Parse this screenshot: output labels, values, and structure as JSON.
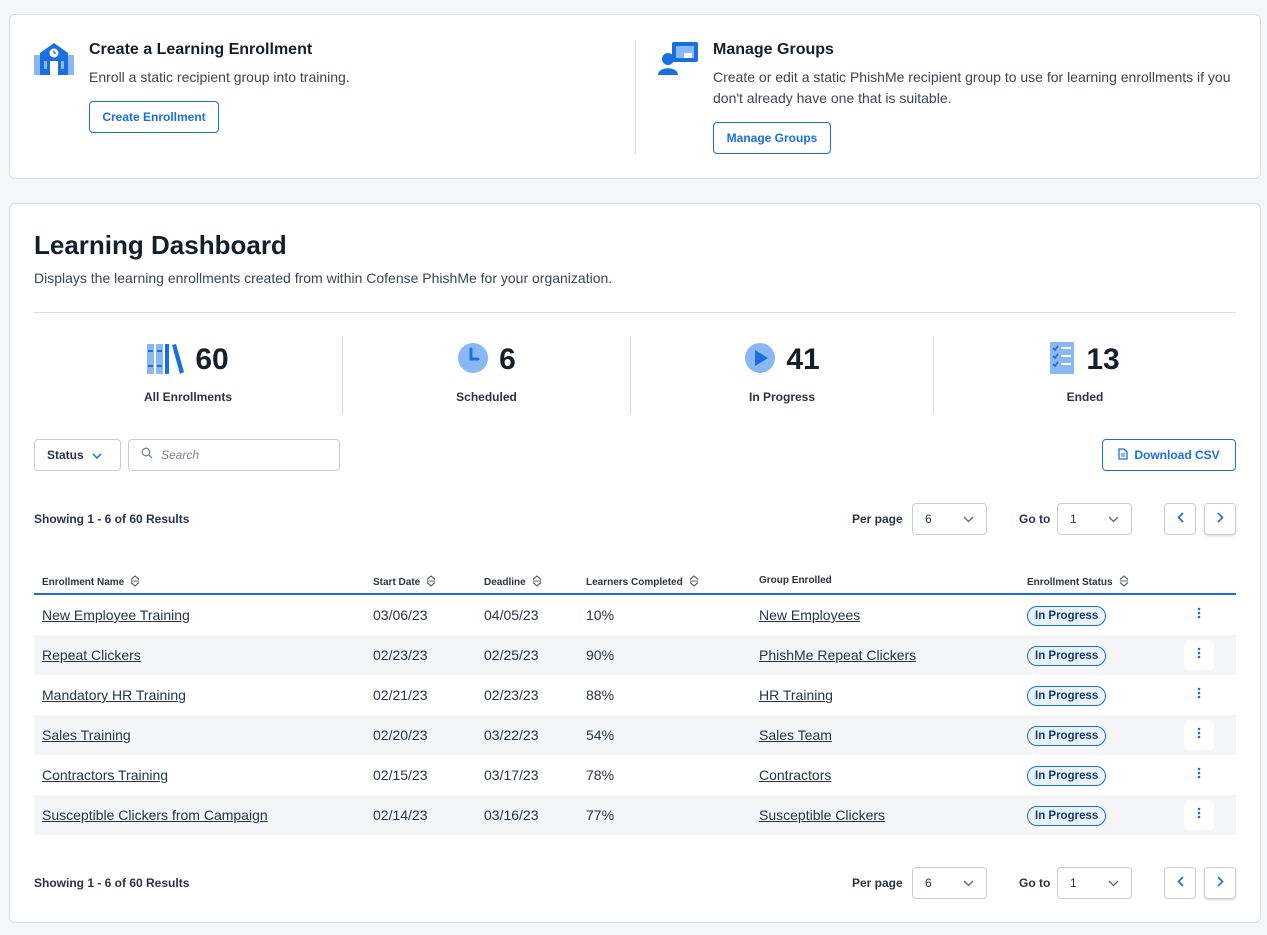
{
  "create": {
    "title": "Create a Learning Enrollment",
    "description": "Enroll a static recipient group into training.",
    "button": "Create Enrollment"
  },
  "groups": {
    "title": "Manage Groups",
    "description": "Create or edit a static PhishMe recipient group to use for learning enrollments if you don't already have one that is suitable.",
    "button": "Manage Groups"
  },
  "dashboard": {
    "title": "Learning Dashboard",
    "subtitle": "Displays the learning enrollments created from within Cofense PhishMe for your organization."
  },
  "stats": [
    {
      "value": "60",
      "label": "All Enrollments",
      "icon": "books-icon"
    },
    {
      "value": "6",
      "label": "Scheduled",
      "icon": "clock-icon"
    },
    {
      "value": "41",
      "label": "In Progress",
      "icon": "play-icon"
    },
    {
      "value": "13",
      "label": "Ended",
      "icon": "checklist-icon"
    }
  ],
  "filters": {
    "status_label": "Status",
    "search_placeholder": "Search",
    "download_label": "Download CSV"
  },
  "pager": {
    "results_text": "Showing 1 - 6 of 60 Results",
    "per_page_label": "Per page",
    "per_page_value": "6",
    "goto_label": "Go to",
    "goto_value": "1"
  },
  "table": {
    "columns": [
      "Enrollment Name",
      "Start Date",
      "Deadline",
      "Learners Completed",
      "Group Enrolled",
      "Enrollment Status"
    ],
    "rows": [
      {
        "name": "New Employee Training",
        "start": "03/06/23",
        "deadline": "04/05/23",
        "completed": "10%",
        "group": "New Employees",
        "status": "In Progress"
      },
      {
        "name": "Repeat Clickers",
        "start": "02/23/23",
        "deadline": "02/25/23",
        "completed": "90%",
        "group": "PhishMe Repeat Clickers",
        "status": "In Progress"
      },
      {
        "name": "Mandatory HR Training",
        "start": "02/21/23",
        "deadline": "02/23/23",
        "completed": "88%",
        "group": "HR Training",
        "status": "In Progress"
      },
      {
        "name": "Sales Training",
        "start": "02/20/23",
        "deadline": "03/22/23",
        "completed": "54%",
        "group": "Sales Team",
        "status": "In Progress"
      },
      {
        "name": "Contractors Training",
        "start": "02/15/23",
        "deadline": "03/17/23",
        "completed": "78%",
        "group": "Contractors",
        "status": "In Progress"
      },
      {
        "name": "Susceptible Clickers from Campaign",
        "start": "02/14/23",
        "deadline": "03/16/23",
        "completed": "77%",
        "group": "Susceptible Clickers",
        "status": "In Progress"
      }
    ]
  },
  "colors": {
    "accent": "#1a6fe0",
    "accent_light": "#8ab8f5",
    "badge_bg": "#eaf2fe"
  }
}
